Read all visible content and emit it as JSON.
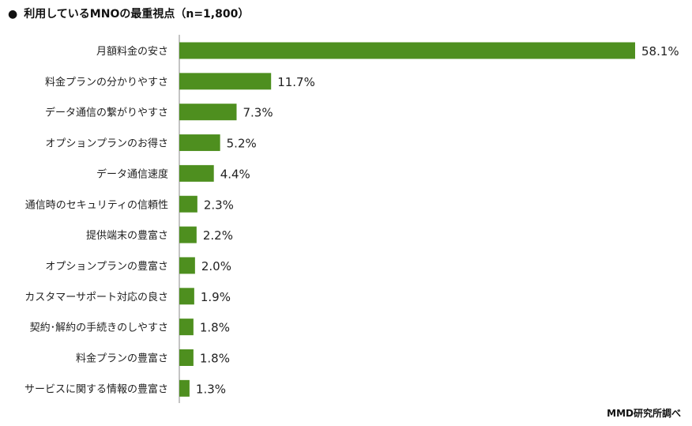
{
  "title": {
    "bullet": "●",
    "text": "利用しているMNOの最重視点（n=1,800）"
  },
  "source": "MMD研究所調べ",
  "colors": {
    "bar": "#4e8f1f",
    "axis": "#888888",
    "text": "#222222"
  },
  "chart_data": {
    "type": "bar",
    "orientation": "horizontal",
    "categories": [
      "月額料金の安さ",
      "料金プランの分かりやすさ",
      "データ通信の繋がりやすさ",
      "オプションプランのお得さ",
      "データ通信速度",
      "通信時のセキュリティの信頼性",
      "提供端末の豊富さ",
      "オプションプランの豊富さ",
      "カスタマーサポート対応の良さ",
      "契約･解約の手続きのしやすさ",
      "料金プランの豊富さ",
      "サービスに関する情報の豊富さ"
    ],
    "values": [
      58.1,
      11.7,
      7.3,
      5.2,
      4.4,
      2.3,
      2.2,
      2.0,
      1.9,
      1.8,
      1.8,
      1.3
    ],
    "value_labels": [
      "58.1%",
      "11.7%",
      "7.3%",
      "5.2%",
      "4.4%",
      "2.3%",
      "2.2%",
      "2.0%",
      "1.9%",
      "1.8%",
      "1.8%",
      "1.3%"
    ],
    "xlim": [
      0,
      58.1
    ],
    "grid": false,
    "legend": "none"
  }
}
